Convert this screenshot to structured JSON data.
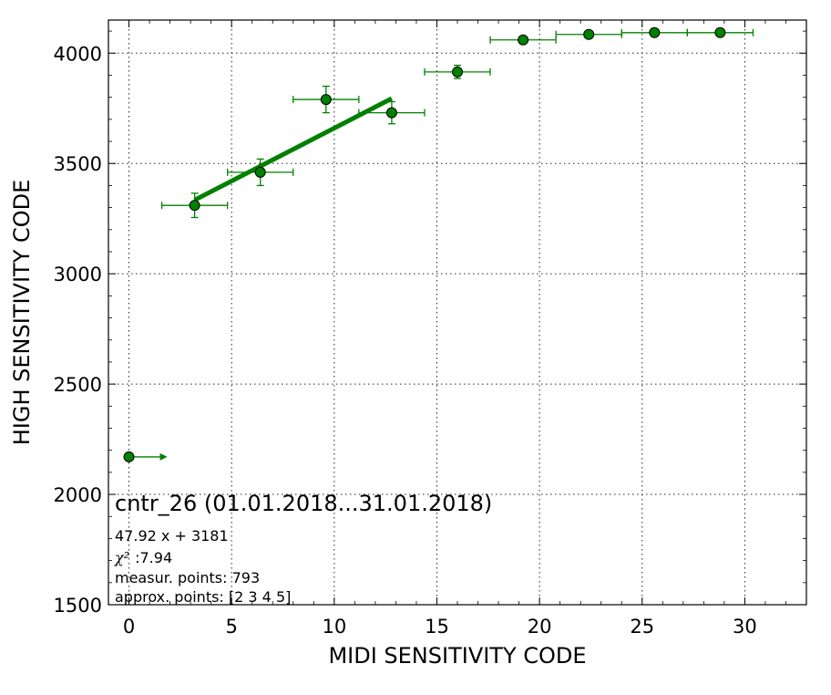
{
  "chart_data": {
    "type": "scatter",
    "title": "",
    "xlabel": "MIDI SENSITIVITY CODE",
    "ylabel": "HIGH SENSITIVITY CODE",
    "xlim": [
      -1,
      33
    ],
    "ylim": [
      1500,
      4150
    ],
    "xticks": [
      "0",
      "5",
      "10",
      "15",
      "20",
      "25",
      "30"
    ],
    "yticks": [
      "1500",
      "2000",
      "2500",
      "3000",
      "3500",
      "4000"
    ],
    "grid": true,
    "colors": {
      "series": "#008000",
      "marker_fill": "#008000",
      "marker_edge": "#000000"
    },
    "series": [
      {
        "points": [
          {
            "x": 0,
            "y": 2170,
            "xerr": [
              0,
              1.6
            ],
            "yerr": 0,
            "lower_limit_arrow": true
          },
          {
            "x": 3.2,
            "y": 3310,
            "xerr": [
              1.6,
              1.6
            ],
            "yerr": 55
          },
          {
            "x": 6.4,
            "y": 3460,
            "xerr": [
              1.6,
              1.6
            ],
            "yerr": 60
          },
          {
            "x": 9.6,
            "y": 3790,
            "xerr": [
              1.6,
              1.6
            ],
            "yerr": 60
          },
          {
            "x": 12.8,
            "y": 3730,
            "xerr": [
              1.6,
              1.6
            ],
            "yerr": 50
          },
          {
            "x": 16.0,
            "y": 3915,
            "xerr": [
              1.6,
              1.6
            ],
            "yerr": 30
          },
          {
            "x": 19.2,
            "y": 4060,
            "xerr": [
              1.6,
              1.6
            ],
            "yerr": 10
          },
          {
            "x": 22.4,
            "y": 4085,
            "xerr": [
              1.6,
              1.6
            ],
            "yerr": 8
          },
          {
            "x": 25.6,
            "y": 4093,
            "xerr": [
              1.6,
              1.6
            ],
            "yerr": 6
          },
          {
            "x": 28.8,
            "y": 4093,
            "xerr": [
              1.6,
              1.6
            ],
            "yerr": 6
          }
        ]
      }
    ],
    "fit_line": {
      "slope": 47.92,
      "intercept": 3181,
      "x_range": [
        3.2,
        12.8
      ]
    },
    "annotations": {
      "title": "cntr_26 (01.01.2018...31.01.2018)",
      "equation": "47.92 x + 3181",
      "chi2_symbol": "χ²",
      "chi2_value": ":7.94",
      "measur_points": "measur. points: 793",
      "approx_points": "approx. points: [2 3 4 5]"
    }
  }
}
